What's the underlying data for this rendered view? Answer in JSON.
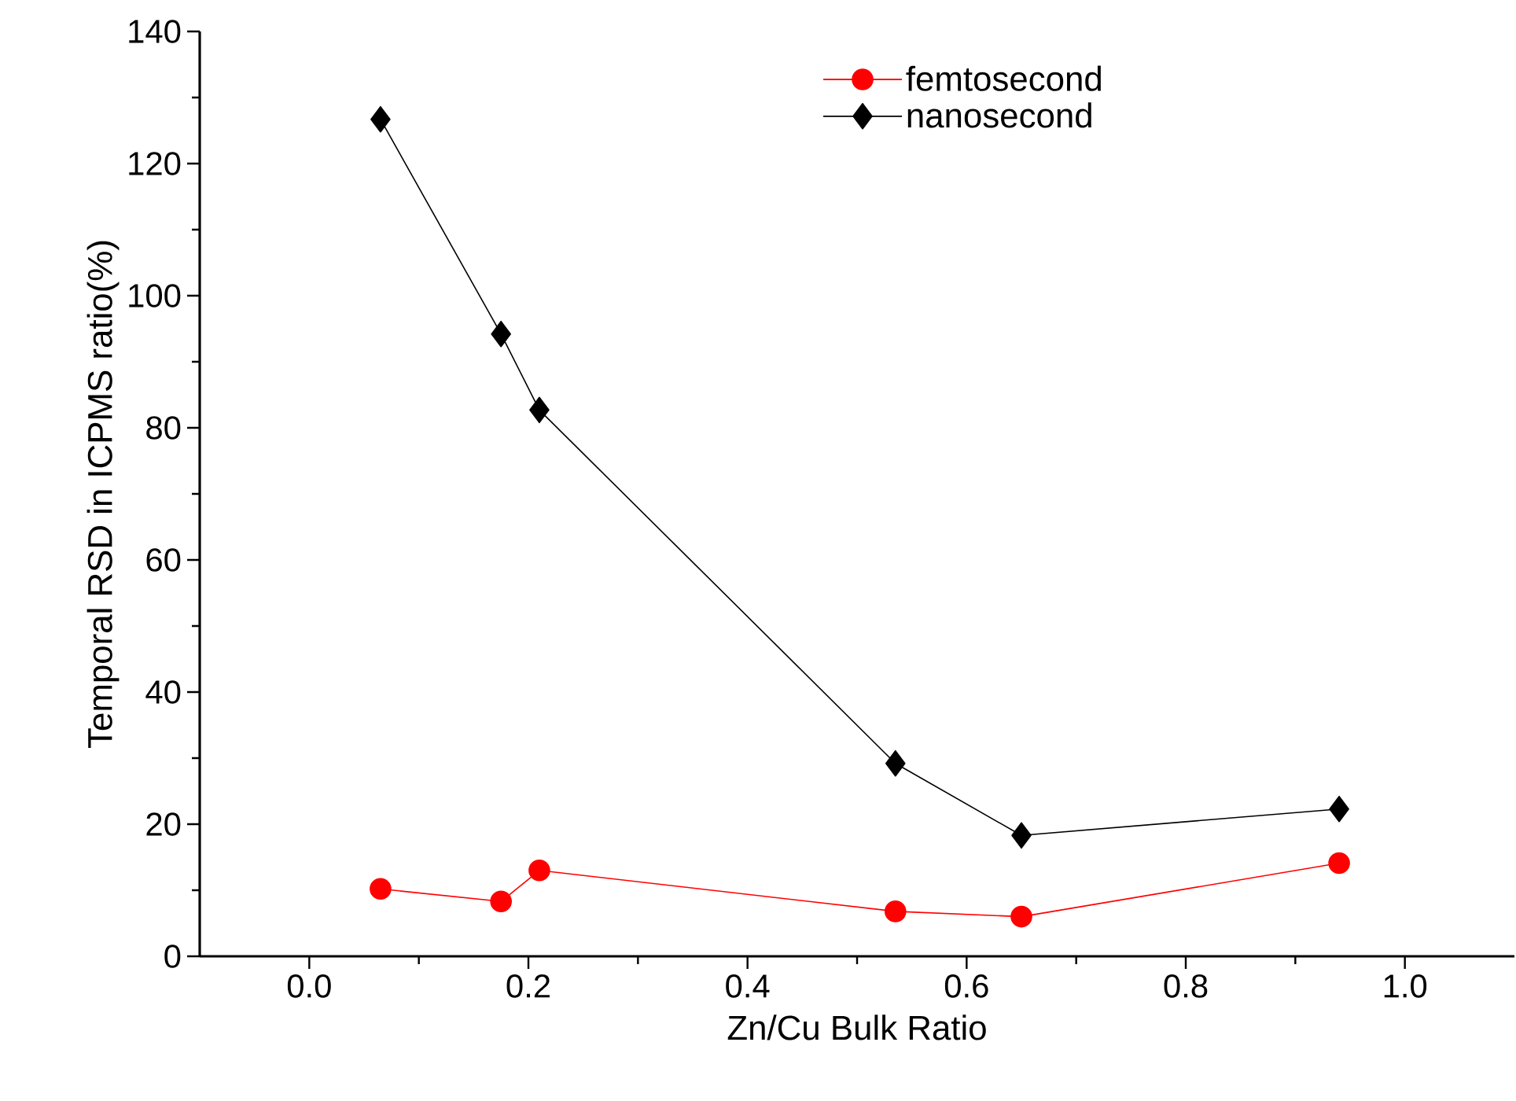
{
  "chart_data": {
    "type": "line",
    "xlabel": "Zn/Cu Bulk Ratio",
    "ylabel": "Temporal RSD in ICPMS ratio(%)",
    "xlim": [
      -0.1,
      1.1
    ],
    "xticks": [
      {
        "value": 0.0,
        "label": "0.0"
      },
      0.2,
      0.4,
      0.6,
      0.8,
      {
        "value": 1.0,
        "label": "1.0"
      }
    ],
    "ylim": [
      0,
      140
    ],
    "yticks": [
      0,
      20,
      40,
      60,
      80,
      100,
      120,
      140
    ],
    "grid": false,
    "legend": "top right",
    "series": [
      {
        "name": "femtosecond",
        "color": "#ff0000",
        "marker": "circle",
        "x": [
          0.065,
          0.175,
          0.21,
          0.535,
          0.65,
          0.94
        ],
        "values": [
          10.2,
          8.3,
          13.0,
          6.8,
          6.0,
          14.1
        ]
      },
      {
        "name": "nanosecond",
        "color": "#000000",
        "marker": "diamond",
        "x": [
          0.065,
          0.175,
          0.21,
          0.535,
          0.65,
          0.94
        ],
        "values": [
          126.7,
          94.2,
          82.7,
          29.2,
          18.3,
          22.3
        ]
      }
    ]
  }
}
